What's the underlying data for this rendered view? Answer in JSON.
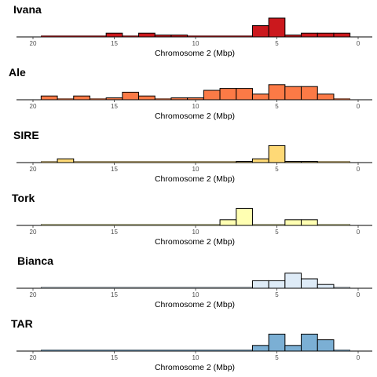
{
  "chart_data": [
    {
      "type": "bar",
      "title": "Ivana",
      "xlabel": "Chromosome 2 (Mbp)",
      "xlim": [
        20,
        0
      ],
      "ylim": [
        0,
        5
      ],
      "fill": "#cb181d",
      "bins": [
        {
          "x": 15,
          "y": 1
        },
        {
          "x": 13,
          "y": 1
        },
        {
          "x": 12,
          "y": 0.5
        },
        {
          "x": 11,
          "y": 0.5
        },
        {
          "x": 6,
          "y": 3
        },
        {
          "x": 5,
          "y": 5
        },
        {
          "x": 4,
          "y": 0.5
        },
        {
          "x": 3,
          "y": 1
        },
        {
          "x": 2,
          "y": 1
        },
        {
          "x": 1,
          "y": 1
        }
      ]
    },
    {
      "type": "bar",
      "title": "Ale",
      "xlabel": "Chromosome 2 (Mbp)",
      "xlim": [
        20,
        0
      ],
      "ylim": [
        0,
        5
      ],
      "fill": "#fb7a46",
      "bins": [
        {
          "x": 19,
          "y": 1
        },
        {
          "x": 17,
          "y": 1
        },
        {
          "x": 15,
          "y": 0.5
        },
        {
          "x": 14,
          "y": 2
        },
        {
          "x": 13,
          "y": 1
        },
        {
          "x": 11,
          "y": 0.5
        },
        {
          "x": 10,
          "y": 0.5
        },
        {
          "x": 9,
          "y": 2.5
        },
        {
          "x": 8,
          "y": 3
        },
        {
          "x": 7,
          "y": 3
        },
        {
          "x": 6,
          "y": 1.5
        },
        {
          "x": 5,
          "y": 4
        },
        {
          "x": 4,
          "y": 3.5
        },
        {
          "x": 3,
          "y": 3.5
        },
        {
          "x": 2,
          "y": 1.5
        }
      ]
    },
    {
      "type": "bar",
      "title": "SIRE",
      "xlabel": "Chromosome 2 (Mbp)",
      "xlim": [
        20,
        0
      ],
      "ylim": [
        0,
        5
      ],
      "fill": "#fed976",
      "bins": [
        {
          "x": 18,
          "y": 1
        },
        {
          "x": 7,
          "y": 0.3
        },
        {
          "x": 6,
          "y": 1
        },
        {
          "x": 5,
          "y": 4.5
        },
        {
          "x": 4,
          "y": 0.3
        },
        {
          "x": 3,
          "y": 0.3
        }
      ]
    },
    {
      "type": "bar",
      "title": "Tork",
      "xlabel": "Chromosome 2 (Mbp)",
      "xlim": [
        20,
        0
      ],
      "ylim": [
        0,
        5
      ],
      "fill": "#ffffb2",
      "bins": [
        {
          "x": 8,
          "y": 1.5
        },
        {
          "x": 7,
          "y": 4.5
        },
        {
          "x": 4,
          "y": 1.5
        },
        {
          "x": 3,
          "y": 1.5
        }
      ]
    },
    {
      "type": "bar",
      "title": "Bianca",
      "xlabel": "Chromosome 2 (Mbp)",
      "xlim": [
        20,
        0
      ],
      "ylim": [
        0,
        5
      ],
      "fill": "#deebf7",
      "bins": [
        {
          "x": 6,
          "y": 2
        },
        {
          "x": 5,
          "y": 2
        },
        {
          "x": 4,
          "y": 4
        },
        {
          "x": 3,
          "y": 2.5
        },
        {
          "x": 2,
          "y": 1
        }
      ]
    },
    {
      "type": "bar",
      "title": "TAR",
      "xlabel": "Chromosome 2 (Mbp)",
      "xlim": [
        20,
        0
      ],
      "ylim": [
        0,
        5
      ],
      "fill": "#7bafd4",
      "bins": [
        {
          "x": 6,
          "y": 1.5
        },
        {
          "x": 5,
          "y": 4.5
        },
        {
          "x": 4,
          "y": 1.5
        },
        {
          "x": 3,
          "y": 4.5
        },
        {
          "x": 2,
          "y": 3
        }
      ]
    }
  ],
  "x_ticks": [
    20,
    15,
    10,
    5,
    0
  ]
}
